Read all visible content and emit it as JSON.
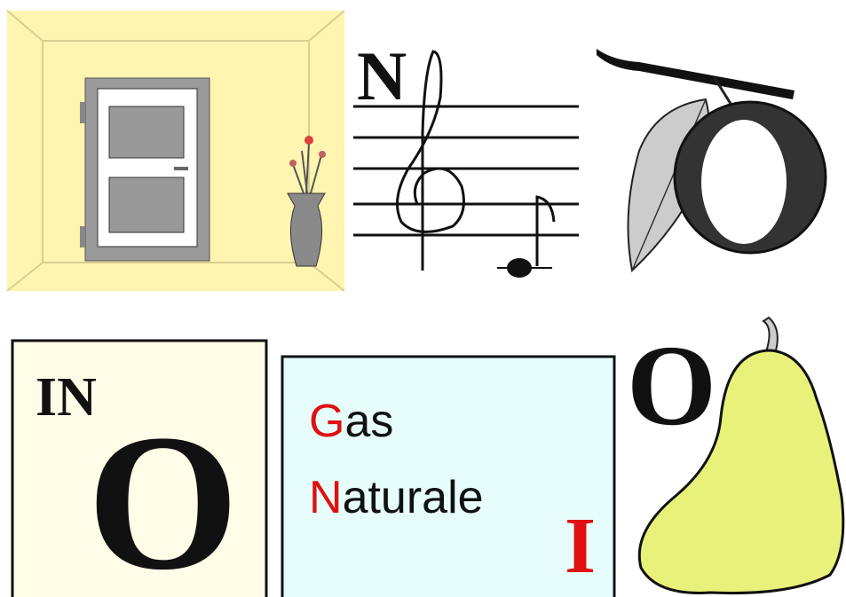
{
  "top": {
    "music": {
      "letter": "N"
    }
  },
  "bottom": {
    "left": {
      "small": "IN",
      "big": "O"
    },
    "middle": {
      "line1": {
        "initial": "G",
        "rest": "as"
      },
      "line2": {
        "initial": "N",
        "rest": "aturale"
      },
      "letter": "I"
    },
    "right": {
      "letter": "O"
    }
  }
}
